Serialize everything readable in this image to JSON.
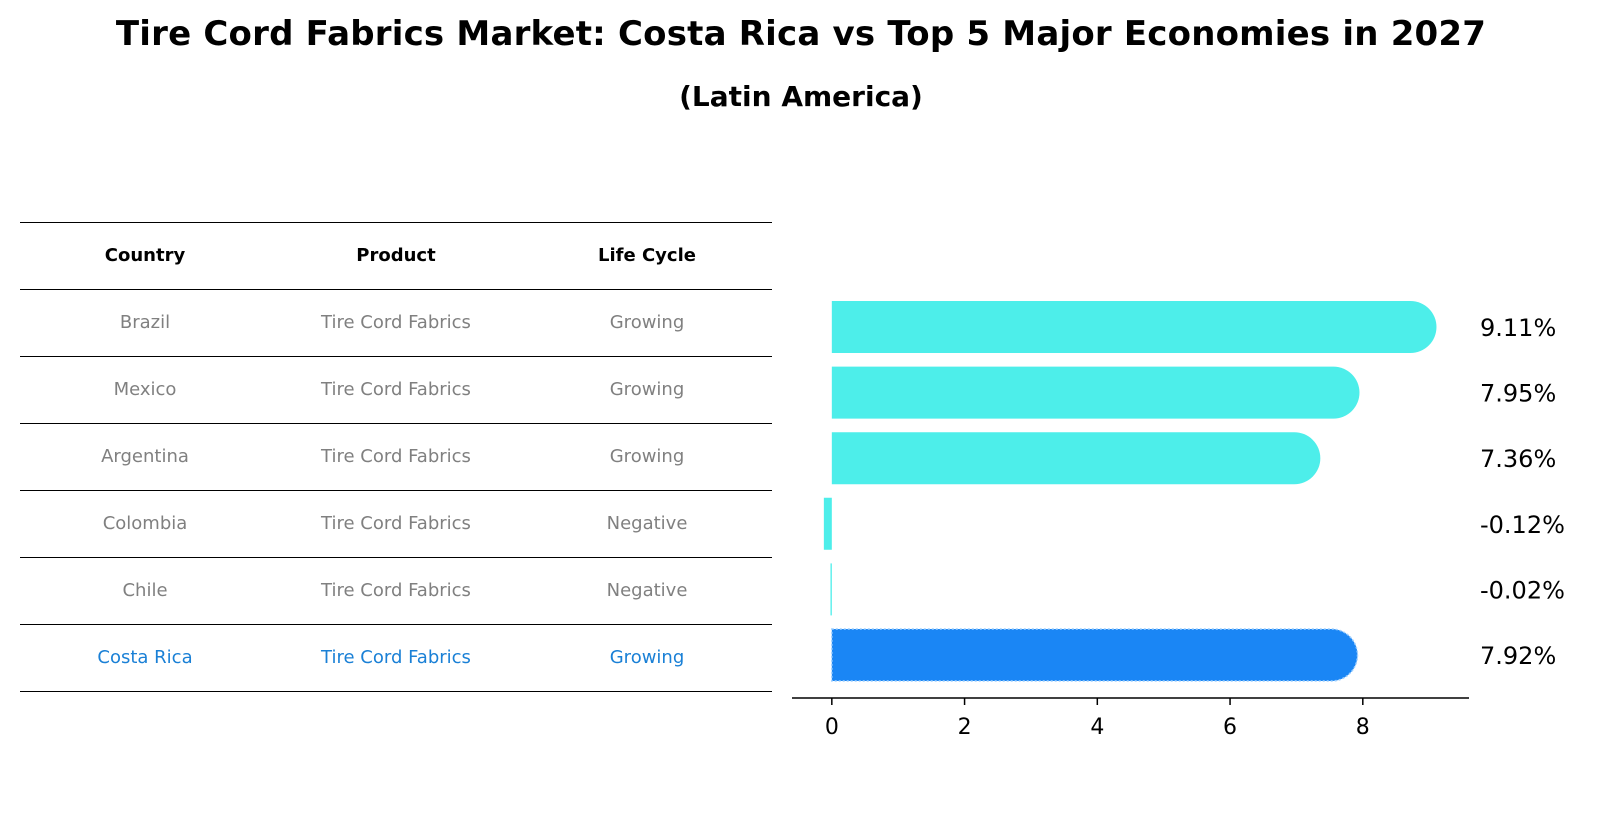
{
  "chart_data": {
    "type": "bar",
    "orientation": "horizontal",
    "title": "Tire Cord Fabrics Market: Costa Rica vs Top 5 Major Economies in 2027",
    "subtitle": "(Latin America)",
    "categories": [
      "Brazil",
      "Mexico",
      "Argentina",
      "Colombia",
      "Chile",
      "Costa Rica"
    ],
    "values": [
      9.11,
      7.95,
      7.36,
      -0.12,
      -0.02,
      7.92
    ],
    "value_labels": [
      "9.11%",
      "7.95%",
      "7.36%",
      "-0.12%",
      "-0.02%",
      "7.92%"
    ],
    "highlight": "Costa Rica",
    "xlim": [
      -0.6,
      9.6
    ],
    "xticks": [
      0,
      2,
      4,
      6,
      8
    ],
    "colors": {
      "bar": "#4deeea",
      "highlight": "#1a86f5",
      "highlight_text": "#1a80d6",
      "muted_text": "#808080"
    }
  },
  "table": {
    "headers": [
      "Country",
      "Product",
      "Life Cycle"
    ],
    "rows": [
      [
        "Brazil",
        "Tire Cord Fabrics",
        "Growing"
      ],
      [
        "Mexico",
        "Tire Cord Fabrics",
        "Growing"
      ],
      [
        "Argentina",
        "Tire Cord Fabrics",
        "Growing"
      ],
      [
        "Colombia",
        "Tire Cord Fabrics",
        "Negative"
      ],
      [
        "Chile",
        "Tire Cord Fabrics",
        "Negative"
      ],
      [
        "Costa Rica",
        "Tire Cord Fabrics",
        "Growing"
      ]
    ]
  }
}
